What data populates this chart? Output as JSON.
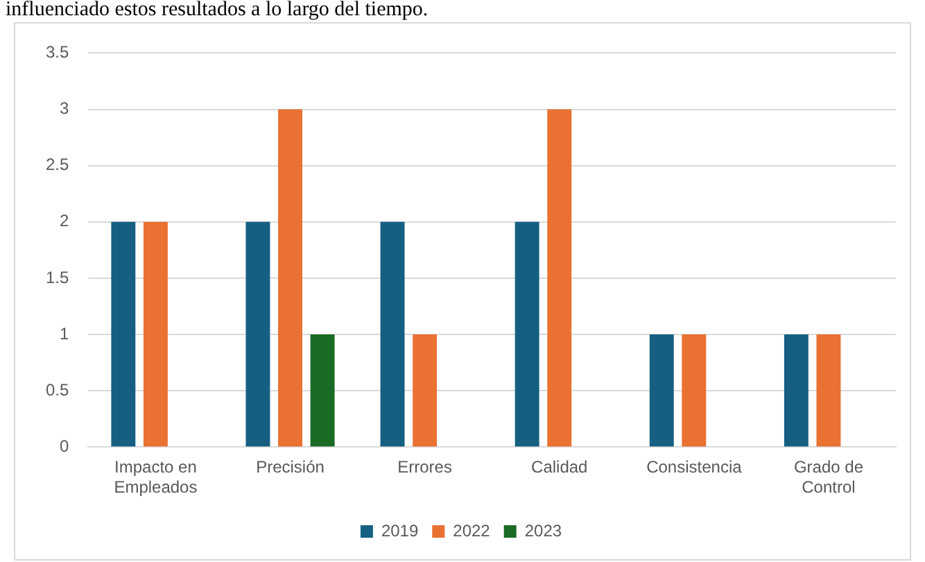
{
  "chart_data": {
    "type": "bar",
    "annotations": [
      "influenciado estos resultados a lo largo del tiempo."
    ],
    "categories": [
      "Impacto en Empleados",
      "Precisión",
      "Errores",
      "Calidad",
      "Consistencia",
      "Grado de Control"
    ],
    "series": [
      {
        "name": "2019",
        "color": "#156082",
        "values": [
          2,
          2,
          2,
          2,
          1,
          1
        ]
      },
      {
        "name": "2022",
        "color": "#e97132",
        "values": [
          2,
          3,
          1,
          3,
          1,
          1
        ]
      },
      {
        "name": "2023",
        "color": "#196b24",
        "values": [
          null,
          1,
          null,
          null,
          null,
          null
        ]
      }
    ],
    "ylim": [
      0,
      3.5
    ],
    "yticks": [
      0,
      0.5,
      1,
      1.5,
      2,
      2.5,
      3,
      3.5
    ],
    "grid": "y",
    "legend": "bottom"
  }
}
